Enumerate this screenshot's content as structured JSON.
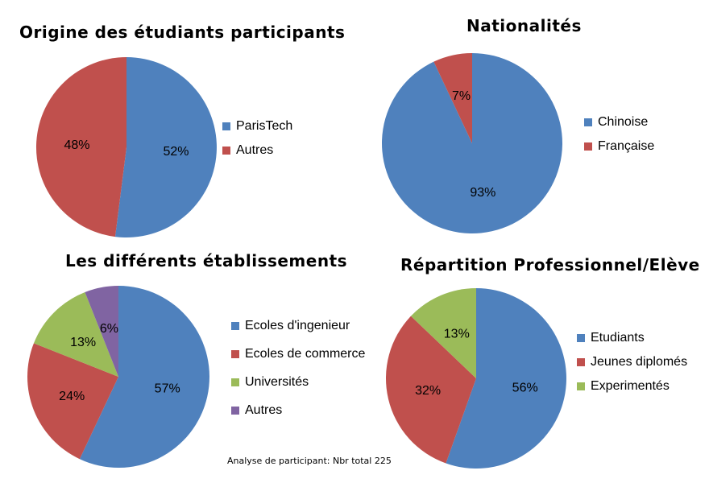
{
  "chart_data": [
    {
      "type": "pie",
      "title": "Origine des étudiants participants",
      "categories": [
        "ParisTech",
        "Autres"
      ],
      "values": [
        52,
        48
      ],
      "labels": [
        "52%",
        "48%"
      ],
      "colors": [
        "#4F81BD",
        "#C0504D"
      ],
      "legend": "right"
    },
    {
      "type": "pie",
      "title": "Nationalités",
      "categories": [
        "Chinoise",
        "Française"
      ],
      "values": [
        93,
        7
      ],
      "labels": [
        "93%",
        "7%"
      ],
      "colors": [
        "#4F81BD",
        "#C0504D"
      ],
      "legend": "right"
    },
    {
      "type": "pie",
      "title": "Les différents établissements",
      "categories": [
        "Ecoles d'ingenieur",
        "Ecoles de commerce",
        "Universités",
        "Autres"
      ],
      "values": [
        57,
        24,
        13,
        6
      ],
      "labels": [
        "57%",
        "24%",
        "13%",
        "6%"
      ],
      "colors": [
        "#4F81BD",
        "#C0504D",
        "#9BBB59",
        "#8064A2"
      ],
      "legend": "right"
    },
    {
      "type": "pie",
      "title": "Répartition Professionnel/Elève",
      "categories": [
        "Etudiants",
        "Jeunes diplomés",
        "Experimentés"
      ],
      "values": [
        56,
        32,
        13
      ],
      "labels": [
        "56%",
        "32%",
        "13%"
      ],
      "colors": [
        "#4F81BD",
        "#C0504D",
        "#9BBB59"
      ],
      "legend": "right"
    }
  ],
  "footer": "Analyse de participant: Nbr total 225"
}
